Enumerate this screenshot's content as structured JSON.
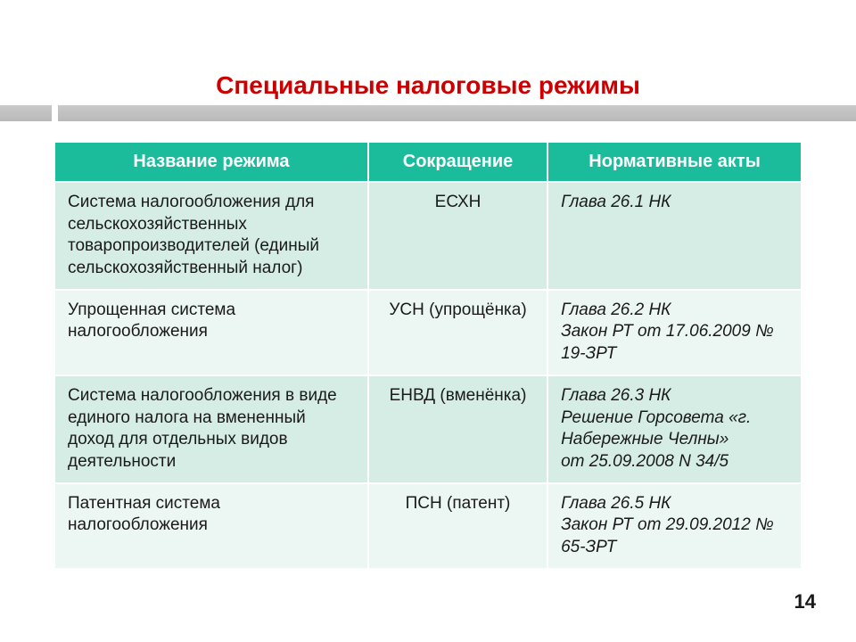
{
  "title": "Специальные налоговые режимы",
  "columns": [
    "Название режима",
    "Сокращение",
    "Нормативные акты"
  ],
  "rows": [
    {
      "name": "Система налогообложения для сельскохозяйственных товаропроизводителей (единый сельскохозяйственный налог)",
      "abbr": "ЕСХН",
      "doc": "Глава 26.1 НК"
    },
    {
      "name": "Упрощенная система налогообложения",
      "abbr": "УСН (упрощёнка)",
      "doc": "Глава 26.2 НК\nЗакон РТ от 17.06.2009 № 19-ЗРТ"
    },
    {
      "name": "Система налогообложения в виде единого налога на вмененный доход для отдельных видов деятельности",
      "abbr": "ЕНВД (вменёнка)",
      "doc": "Глава 26.3 НК\nРешение Горсовета «г. Набережные Челны»\nот 25.09.2008 N 34/5"
    },
    {
      "name": "Патентная система налогообложения",
      "abbr": "ПСН (патент)",
      "doc": "Глава 26.5 НК\nЗакон РТ от 29.09.2012 № 65-ЗРТ"
    }
  ],
  "page_number": "14",
  "style": {
    "title_color": "#cc0000",
    "header_bg": "#1abc9c",
    "row_odd_bg": "#d5ede5",
    "row_even_bg": "#ecf6f2",
    "stripe_color": "#c0c0c0",
    "font_family": "Arial",
    "title_fontsize_pt": 21,
    "body_fontsize_pt": 14
  }
}
